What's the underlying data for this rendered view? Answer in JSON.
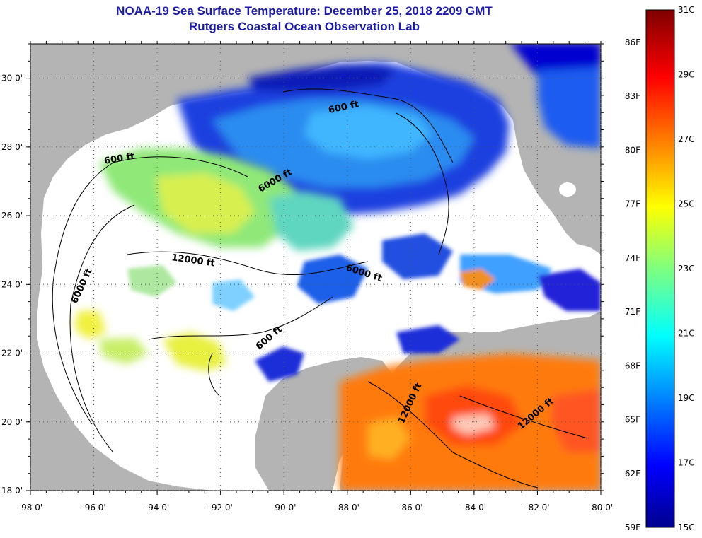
{
  "title": "NOAA-19 Sea Surface Temperature:  December 25, 2018 2209 GMT",
  "subtitle": "Rutgers Coastal Ocean Observation Lab",
  "map": {
    "lon_ticks": [
      "-98 0'",
      "-96 0'",
      "-94 0'",
      "-92 0'",
      "-90 0'",
      "-88 0'",
      "-86 0'",
      "-84 0'",
      "-82 0'",
      "-80 0'"
    ],
    "lat_ticks": [
      "30 0'",
      "28 0'",
      "26 0'",
      "24 0'",
      "22 0'",
      "20 0'",
      "18 0'"
    ],
    "lon_range": [
      -98,
      -80
    ],
    "lat_range": [
      18,
      31
    ],
    "contour_labels": [
      "600 ft",
      "600 ft",
      "6000 ft",
      "12000 ft",
      "6000 ft",
      "6000 ft",
      "600 ft",
      "12000 ft",
      "12000 ft"
    ],
    "colors": {
      "land": "#b4b4b4",
      "cloud": "#ffffff"
    }
  },
  "colorbar": {
    "celsius_labels": [
      "31C",
      "29C",
      "27C",
      "25C",
      "23C",
      "21C",
      "19C",
      "17C",
      "15C"
    ],
    "fahrenheit_labels": [
      "86F",
      "83F",
      "80F",
      "77F",
      "74F",
      "71F",
      "68F",
      "65F",
      "62F",
      "59F"
    ],
    "range_c": [
      15,
      31
    ]
  }
}
